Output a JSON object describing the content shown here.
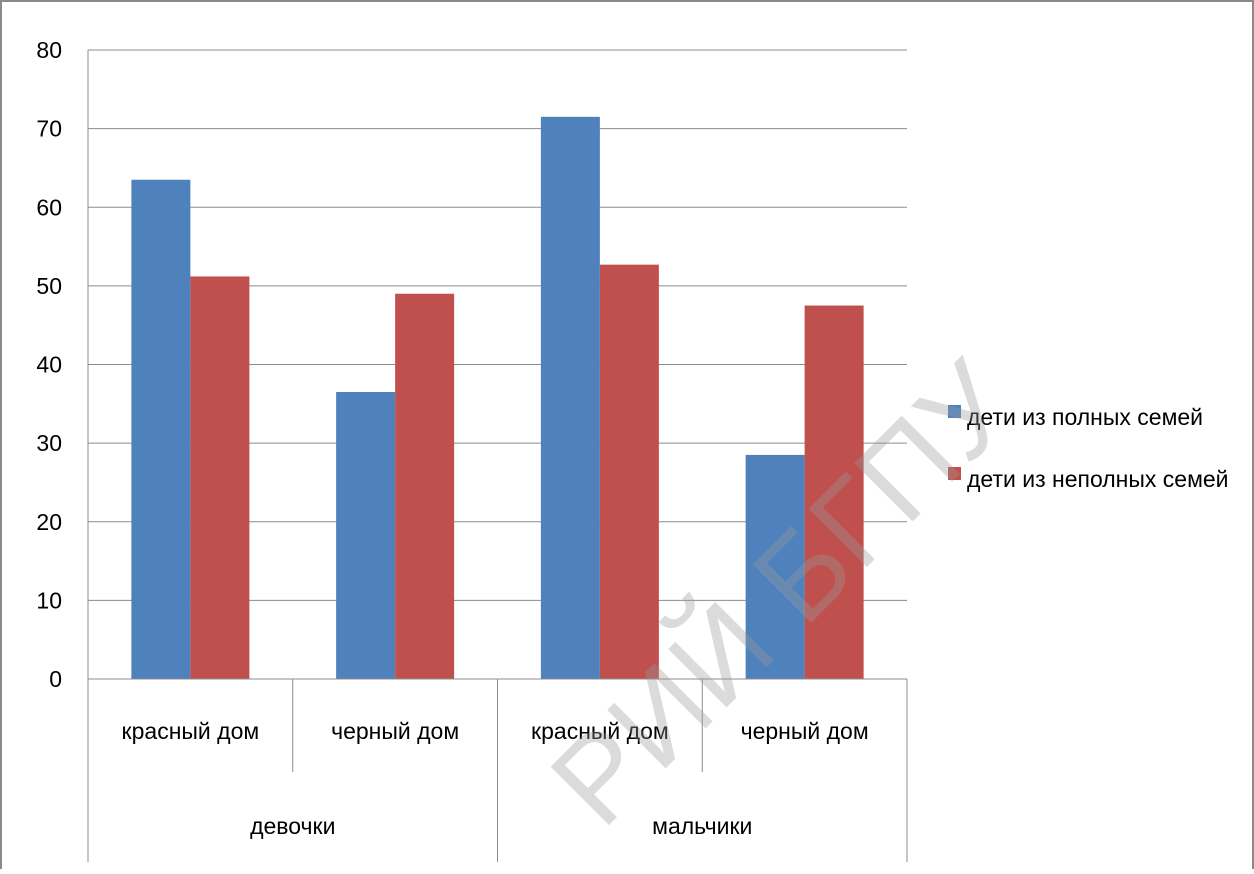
{
  "chart_data": {
    "type": "bar",
    "title": "",
    "xlabel": "",
    "ylabel": "",
    "ylim": [
      0,
      80
    ],
    "yticks": [
      0,
      10,
      20,
      30,
      40,
      50,
      60,
      70,
      80
    ],
    "grid": true,
    "legend_position": "right",
    "categories": [
      "красный дом",
      "черный дом",
      "красный дом",
      "черный дом"
    ],
    "groups": [
      {
        "label": "девочки",
        "span": 2
      },
      {
        "label": "мальчики",
        "span": 2
      }
    ],
    "series": [
      {
        "name": "дети из полных семей",
        "color": "#4F81BD",
        "values": [
          63.5,
          36.5,
          71.5,
          28.5
        ]
      },
      {
        "name": "дети из неполных семей",
        "color": "#C0504D",
        "values": [
          51.2,
          49.0,
          52.7,
          47.5
        ]
      }
    ]
  },
  "watermark": {
    "text": "РИЙ БГПУ"
  }
}
